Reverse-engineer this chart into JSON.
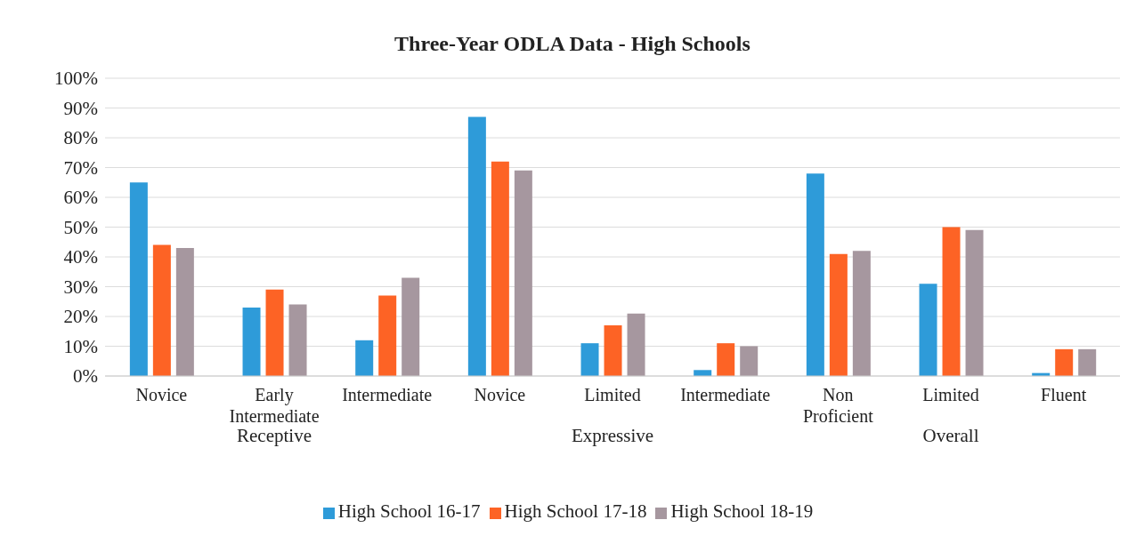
{
  "chart_data": {
    "type": "bar",
    "title": "Three-Year ODLA Data - High Schools",
    "categories": [
      "Novice",
      "Early Intermediate",
      "Intermediate",
      "Novice",
      "Limited",
      "Intermediate",
      "Non Proficient",
      "Limited",
      "Fluent"
    ],
    "series": [
      {
        "name": "High School 16-17",
        "color": "#2e9bd9",
        "values": [
          65,
          23,
          12,
          87,
          11,
          2,
          68,
          31,
          1
        ]
      },
      {
        "name": "High School 17-18",
        "color": "#fd6325",
        "values": [
          44,
          29,
          27,
          72,
          17,
          11,
          41,
          50,
          9
        ]
      },
      {
        "name": "High School 18-19",
        "color": "#a6979f",
        "values": [
          43,
          24,
          33,
          69,
          21,
          10,
          42,
          49,
          9
        ]
      }
    ],
    "ylim": [
      0,
      100
    ],
    "yticks": [
      {
        "value": 0,
        "label": "0%"
      },
      {
        "value": 10,
        "label": "10%"
      },
      {
        "value": 20,
        "label": "20%"
      },
      {
        "value": 30,
        "label": "30%"
      },
      {
        "value": 40,
        "label": "40%"
      },
      {
        "value": 50,
        "label": "50%"
      },
      {
        "value": 60,
        "label": "60%"
      },
      {
        "value": 70,
        "label": "70%"
      },
      {
        "value": 80,
        "label": "80%"
      },
      {
        "value": 90,
        "label": "90%"
      },
      {
        "value": 100,
        "label": "100%"
      }
    ],
    "annotations": [
      "Receptive",
      "Expressive",
      "Overall"
    ],
    "grid": "y",
    "legend": "bottom"
  }
}
